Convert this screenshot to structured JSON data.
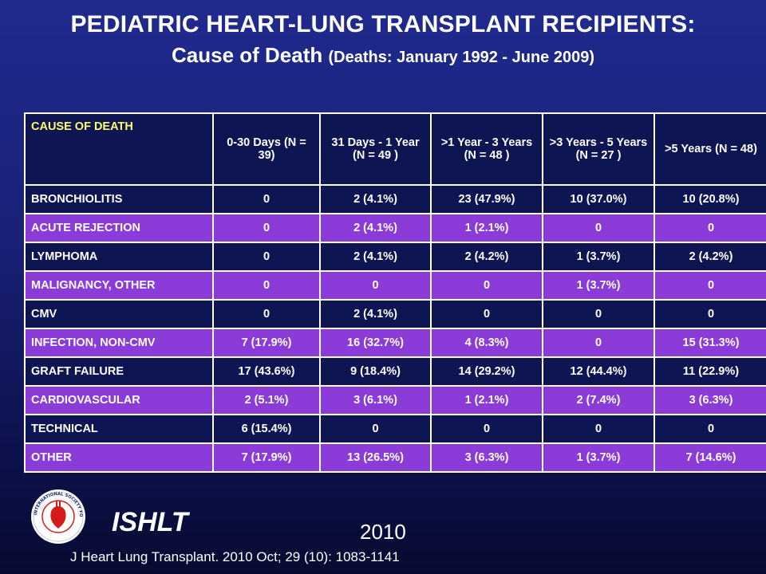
{
  "title": {
    "line1": "PEDIATRIC HEART-LUNG TRANSPLANT RECIPIENTS:",
    "line2_main": "Cause of Death",
    "line2_sub": "(Deaths: January 1992 - June 2009)"
  },
  "table": {
    "headers": [
      "CAUSE OF DEATH",
      "0-30 Days (N = 39)",
      "31 Days - 1 Year (N = 49 )",
      ">1 Year - 3 Years (N = 48 )",
      ">3 Years - 5 Years (N = 27 )",
      ">5 Years (N = 48)"
    ],
    "rows": [
      {
        "cause": "BRONCHIOLITIS",
        "c1": "0",
        "c2": "2 (4.1%)",
        "c3": "23 (47.9%)",
        "c4": "10 (37.0%)",
        "c5": "10 (20.8%)"
      },
      {
        "cause": "ACUTE REJECTION",
        "c1": "0",
        "c2": "2 (4.1%)",
        "c3": "1 (2.1%)",
        "c4": "0",
        "c5": "0"
      },
      {
        "cause": "LYMPHOMA",
        "c1": "0",
        "c2": "2 (4.1%)",
        "c3": "2 (4.2%)",
        "c4": "1 (3.7%)",
        "c5": "2 (4.2%)"
      },
      {
        "cause": "MALIGNANCY, OTHER",
        "c1": "0",
        "c2": "0",
        "c3": "0",
        "c4": "1 (3.7%)",
        "c5": "0"
      },
      {
        "cause": "CMV",
        "c1": "0",
        "c2": "2 (4.1%)",
        "c3": "0",
        "c4": "0",
        "c5": "0"
      },
      {
        "cause": "INFECTION, NON-CMV",
        "c1": "7 (17.9%)",
        "c2": "16 (32.7%)",
        "c3": "4 (8.3%)",
        "c4": "0",
        "c5": "15 (31.3%)"
      },
      {
        "cause": "GRAFT FAILURE",
        "c1": "17 (43.6%)",
        "c2": "9 (18.4%)",
        "c3": "14 (29.2%)",
        "c4": "12 (44.4%)",
        "c5": "11 (22.9%)"
      },
      {
        "cause": "CARDIOVASCULAR",
        "c1": "2 (5.1%)",
        "c2": "3 (6.1%)",
        "c3": "1 (2.1%)",
        "c4": "2 (7.4%)",
        "c5": "3 (6.3%)"
      },
      {
        "cause": "TECHNICAL",
        "c1": "6 (15.4%)",
        "c2": "0",
        "c3": "0",
        "c4": "0",
        "c5": "0"
      },
      {
        "cause": "OTHER",
        "c1": "7 (17.9%)",
        "c2": "13 (26.5%)",
        "c3": "3 (6.3%)",
        "c4": "1 (3.7%)",
        "c5": "7 (14.6%)"
      }
    ]
  },
  "footer": {
    "brand": "ISHLT",
    "year": "2010",
    "citation": "J Heart Lung Transplant. 2010 Oct; 29 (10): 1083-1141",
    "logo_text": "INTERNATIONAL SOCIETY FOR HEART & LUNG TRANSPLANTATION"
  },
  "colors": {
    "background": "#1a2178",
    "dark_row": "#0e1553",
    "purple_row": "#8b3cd8",
    "header_label": "#ffff66"
  }
}
